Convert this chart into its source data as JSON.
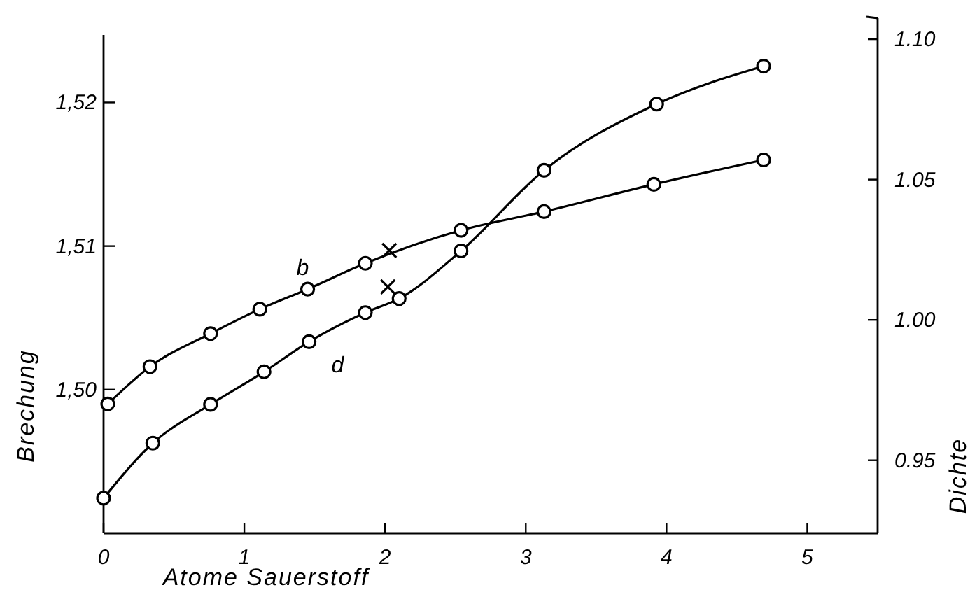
{
  "chart_data": {
    "type": "line",
    "xlabel": "Atome Sauerstoff",
    "ylabel": "Brechung",
    "y2label": "Dichte",
    "xlim": [
      0,
      5.5
    ],
    "xticks": [
      0,
      1,
      2,
      3,
      4,
      5
    ],
    "ylim": [
      1.49,
      1.5247
    ],
    "yticks": [
      {
        "value": 1.5,
        "label": "1,50"
      },
      {
        "value": 1.51,
        "label": "1,51"
      },
      {
        "value": 1.52,
        "label": "1,52"
      }
    ],
    "y2lim": [
      0.924,
      1.1075
    ],
    "y2ticks": [
      0.95,
      1.05,
      {
        "value": 1.0,
        "label": "1.00"
      },
      {
        "value": 1.1,
        "label": "1.10"
      }
    ],
    "marker": "circle",
    "line_style": "solid",
    "series": [
      {
        "name": "b",
        "color": "#000000",
        "x": [
          0.03,
          0.33,
          0.76,
          1.11,
          1.45,
          1.86,
          2.54,
          3.13,
          3.91,
          4.69
        ],
        "values": [
          1.499,
          1.5016,
          1.5039,
          1.5056,
          1.507,
          1.5088,
          1.5111,
          1.5124,
          1.5143,
          1.516
        ]
      },
      {
        "name": "d",
        "color": "#000000",
        "axis": "y2",
        "x": [
          0,
          0.35,
          0.76,
          1.14,
          1.46,
          1.86,
          2.1,
          2.54,
          3.13,
          3.93,
          4.69
        ],
        "values": [
          0.9365,
          0.9561,
          0.9699,
          0.9815,
          0.9922,
          1.0026,
          1.0076,
          1.0246,
          1.0533,
          1.0769,
          1.0904
        ]
      },
      {
        "type": "scatter",
        "marker": "cross",
        "color": "#000000",
        "x": [
          2.03
        ],
        "values": [
          1.5097
        ]
      },
      {
        "type": "scatter",
        "marker": "cross",
        "color": "#000000",
        "axis": "y2",
        "x": [
          2.02
        ],
        "values": [
          1.0118
        ]
      }
    ]
  }
}
